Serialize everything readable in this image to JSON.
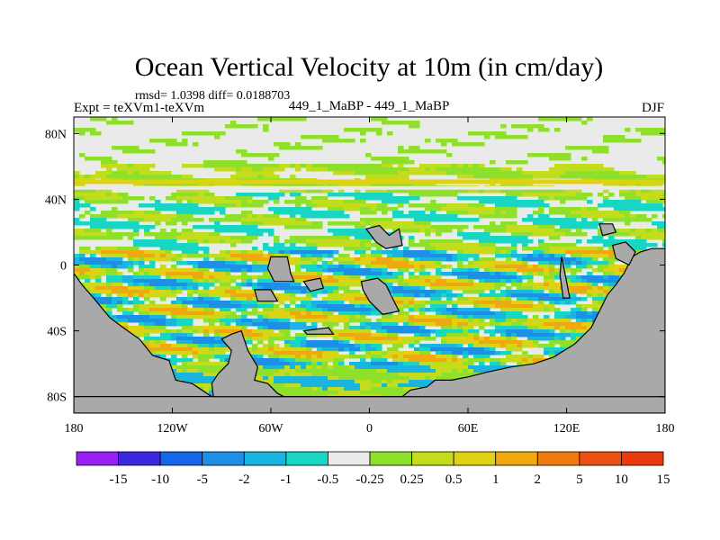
{
  "chart_data": {
    "type": "heatmap",
    "title": "Ocean Vertical Velocity at 10m (in cm/day)",
    "stats_text": "rmsd= 1.0398 diff= 0.0188703",
    "experiment_label": "Expt = teXVm1-teXVm",
    "case_label": "449_1_MaBP - 449_1_MaBP",
    "season": "DJF",
    "x_axis": {
      "range": [
        -180,
        180
      ],
      "ticks": [
        -180,
        -120,
        -60,
        0,
        60,
        120,
        180
      ],
      "tick_labels": [
        "180",
        "120W",
        "60W",
        "0",
        "60E",
        "120E",
        "180"
      ]
    },
    "y_axis": {
      "range": [
        -90,
        90
      ],
      "ticks": [
        80,
        40,
        0,
        -40,
        -80
      ],
      "tick_labels": [
        "80N",
        "40N",
        "0",
        "40S",
        "80S"
      ]
    },
    "colorbar": {
      "levels": [
        "-15",
        "-10",
        "-5",
        "-2",
        "-1",
        "-0.5",
        "-0.25",
        "0.25",
        "0.5",
        "1",
        "2",
        "5",
        "10",
        "15"
      ],
      "colors": [
        "#9a1ff2",
        "#3d28e0",
        "#1566e8",
        "#1d8fe6",
        "#19b4e0",
        "#18d6c4",
        "#eaeaea",
        "#8ee02a",
        "#c3dc1c",
        "#e0d212",
        "#f0a810",
        "#f07a10",
        "#ec5012",
        "#e83a0c"
      ]
    },
    "land_color": "#a9a9a9"
  }
}
